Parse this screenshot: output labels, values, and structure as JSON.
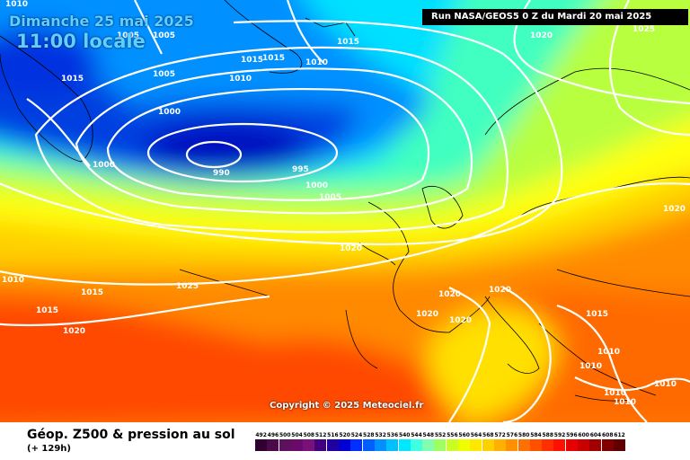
{
  "header": {
    "date": "Dimanche 25 mai 2025",
    "time": "11:00 locale",
    "run": "Run NASA/GEOS5 0 Z du Mardi 20 mai 2025"
  },
  "copyright": "Copyright © 2025 Meteociel.fr",
  "footer": {
    "title": "Géop. Z500 & pression au sol",
    "subtitle": "(+ 129h)"
  },
  "isobar_labels": [
    {
      "id": "l1010a",
      "text": "1010"
    },
    {
      "id": "l1005a",
      "text": "1005"
    },
    {
      "id": "l1005b",
      "text": "1005"
    },
    {
      "id": "l1015a",
      "text": "1015"
    },
    {
      "id": "l1015b",
      "text": "1015"
    },
    {
      "id": "l1015c",
      "text": "1015"
    },
    {
      "id": "l1010b",
      "text": "1010"
    },
    {
      "id": "l1010c",
      "text": "1010"
    },
    {
      "id": "l1020a",
      "text": "1020"
    },
    {
      "id": "l1025a",
      "text": "1025"
    },
    {
      "id": "l1015d",
      "text": "1015"
    },
    {
      "id": "l1005c",
      "text": "1005"
    },
    {
      "id": "l1000a",
      "text": "1000"
    },
    {
      "id": "l1000b",
      "text": "1000"
    },
    {
      "id": "l990",
      "text": "990"
    },
    {
      "id": "l995",
      "text": "995"
    },
    {
      "id": "l1000c",
      "text": "1000"
    },
    {
      "id": "l1005d",
      "text": "1005"
    },
    {
      "id": "l1020b",
      "text": "1020"
    },
    {
      "id": "l1020c",
      "text": "1020"
    },
    {
      "id": "l1010d",
      "text": "1010"
    },
    {
      "id": "l1015e",
      "text": "1015"
    },
    {
      "id": "l1025b",
      "text": "1025"
    },
    {
      "id": "l1015f",
      "text": "1015"
    },
    {
      "id": "l1020d",
      "text": "1020"
    },
    {
      "id": "l1020e",
      "text": "1020"
    },
    {
      "id": "l1020f",
      "text": "1020"
    },
    {
      "id": "l1020g",
      "text": "1020"
    },
    {
      "id": "l1020h",
      "text": "1020"
    },
    {
      "id": "l1015g",
      "text": "1015"
    },
    {
      "id": "l1010e",
      "text": "1010"
    },
    {
      "id": "l1010f",
      "text": "1010"
    },
    {
      "id": "l1010g",
      "text": "1010"
    },
    {
      "id": "l1010h",
      "text": "1010"
    },
    {
      "id": "l1010i",
      "text": "1010"
    }
  ],
  "legend": {
    "values": [
      "492",
      "496",
      "500",
      "504",
      "508",
      "512",
      "516",
      "520",
      "524",
      "528",
      "532",
      "536",
      "540",
      "544",
      "548",
      "552",
      "556",
      "560",
      "564",
      "568",
      "572",
      "576",
      "580",
      "584",
      "588",
      "592",
      "596",
      "600",
      "604",
      "608",
      "612"
    ],
    "colors": [
      "#300030",
      "#4a0a4a",
      "#5e105e",
      "#6a0a6a",
      "#7a107a",
      "#400080",
      "#2000a0",
      "#0000d0",
      "#0030ff",
      "#0060ff",
      "#0090ff",
      "#00c0ff",
      "#00e8ff",
      "#40ffe0",
      "#80ffb0",
      "#a0ff60",
      "#c8ff20",
      "#f0ff00",
      "#ffe800",
      "#ffd000",
      "#ffb000",
      "#ff9000",
      "#ff7000",
      "#ff5000",
      "#ff3000",
      "#ff1000",
      "#e80000",
      "#c80000",
      "#a00000",
      "#800000",
      "#600000"
    ]
  }
}
